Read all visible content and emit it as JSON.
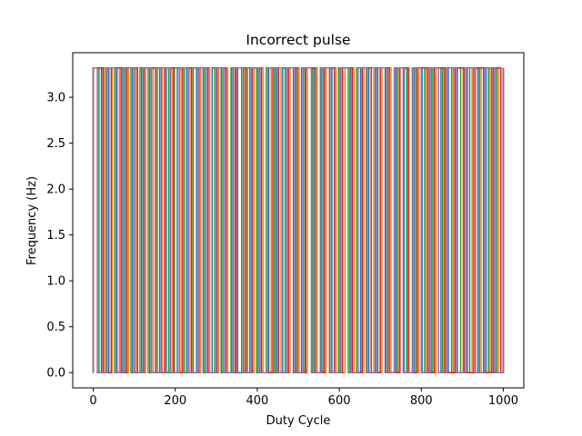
{
  "chart_data": {
    "type": "line",
    "title": "Incorrect pulse",
    "xlabel": "Duty Cycle",
    "ylabel": "Frequency (Hz)",
    "xlim": [
      -50,
      1050
    ],
    "ylim": [
      -0.166,
      3.486
    ],
    "xticks": [
      0,
      200,
      400,
      600,
      800,
      1000
    ],
    "xtick_labels": [
      "0",
      "200",
      "400",
      "600",
      "800",
      "1000"
    ],
    "yticks": [
      0.0,
      0.5,
      1.0,
      1.5,
      2.0,
      2.5,
      3.0
    ],
    "ytick_labels": [
      "0.0",
      "0.5",
      "1.0",
      "1.5",
      "2.0",
      "2.5",
      "3.0"
    ],
    "grid": false,
    "legend": "none",
    "signal_levels": {
      "low": 0.0,
      "high": 3.32
    },
    "series": [
      {
        "color": "#1f77b4",
        "transitions": [
          0,
          20,
          38,
          58,
          72,
          96,
          118,
          138,
          162,
          178,
          205,
          228,
          252,
          268,
          290,
          312,
          338,
          352,
          382,
          402,
          428,
          446,
          462,
          488,
          508,
          538,
          560,
          582,
          602,
          628,
          652,
          672,
          688,
          712,
          738,
          758,
          782,
          802,
          824,
          848,
          866,
          888,
          912,
          938,
          958,
          976,
          1000
        ]
      },
      {
        "color": "#ff7f0e",
        "transitions": [
          0,
          28,
          46,
          64,
          86,
          104,
          128,
          146,
          168,
          192,
          214,
          236,
          262,
          284,
          306,
          328,
          346,
          368,
          392,
          414,
          434,
          458,
          480,
          502,
          522,
          546,
          568,
          592,
          614,
          636,
          660,
          684,
          704,
          726,
          746,
          770,
          794,
          812,
          836,
          856,
          878,
          902,
          924,
          946,
          968,
          988,
          1000
        ]
      },
      {
        "color": "#2ca02c",
        "transitions": [
          0,
          14,
          32,
          52,
          78,
          92,
          114,
          134,
          156,
          184,
          198,
          222,
          244,
          272,
          296,
          316,
          336,
          362,
          376,
          398,
          422,
          442,
          468,
          494,
          516,
          534,
          554,
          576,
          598,
          622,
          642,
          666,
          694,
          718,
          742,
          764,
          786,
          808,
          828,
          852,
          874,
          896,
          918,
          942,
          964,
          984,
          1000
        ]
      },
      {
        "color": "#d62728",
        "transitions": [
          0,
          24,
          44,
          68,
          82,
          108,
          124,
          152,
          174,
          196,
          218,
          240,
          258,
          280,
          302,
          324,
          348,
          372,
          388,
          410,
          438,
          452,
          476,
          498,
          518,
          542,
          564,
          588,
          608,
          632,
          656,
          678,
          700,
          722,
          748,
          768,
          790,
          816,
          832,
          858,
          882,
          904,
          928,
          952,
          972,
          994,
          1000
        ]
      },
      {
        "color": "#9467bd",
        "transitions": [
          0,
          10,
          34,
          56,
          74,
          100,
          122,
          142,
          166,
          188,
          210,
          232,
          256,
          276,
          300,
          320,
          342,
          366,
          386,
          406,
          426,
          450,
          472,
          492,
          512,
          532,
          556,
          580,
          604,
          626,
          646,
          668,
          692,
          714,
          734,
          756,
          778,
          800,
          820,
          842,
          862,
          886,
          908,
          932,
          954,
          980,
          1000
        ]
      }
    ]
  }
}
